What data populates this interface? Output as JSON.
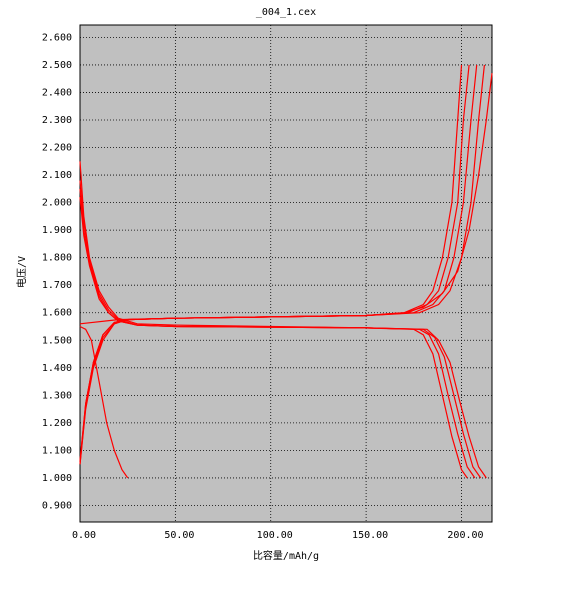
{
  "chart_data": {
    "type": "line",
    "title": "_004_1.cex",
    "xlabel": "比容量/mAh/g",
    "ylabel": "电压/V",
    "xlim": [
      0,
      216
    ],
    "ylim": [
      0.84,
      2.645
    ],
    "grid": true,
    "xticks": [
      {
        "value": 0,
        "label": "0.00"
      },
      {
        "value": 50,
        "label": "50.00"
      },
      {
        "value": 100,
        "label": "100.00"
      },
      {
        "value": 150,
        "label": "150.00"
      },
      {
        "value": 200,
        "label": "200.00"
      }
    ],
    "yticks": [
      {
        "value": 0.9,
        "label": "0.900"
      },
      {
        "value": 1.0,
        "label": "1.000"
      },
      {
        "value": 1.1,
        "label": "1.100"
      },
      {
        "value": 1.2,
        "label": "1.200"
      },
      {
        "value": 1.3,
        "label": "1.300"
      },
      {
        "value": 1.4,
        "label": "1.400"
      },
      {
        "value": 1.5,
        "label": "1.500"
      },
      {
        "value": 1.6,
        "label": "1.600"
      },
      {
        "value": 1.7,
        "label": "1.700"
      },
      {
        "value": 1.8,
        "label": "1.800"
      },
      {
        "value": 1.9,
        "label": "1.900"
      },
      {
        "value": 2.0,
        "label": "2.000"
      },
      {
        "value": 2.1,
        "label": "2.100"
      },
      {
        "value": 2.2,
        "label": "2.200"
      },
      {
        "value": 2.3,
        "label": "2.300"
      },
      {
        "value": 2.4,
        "label": "2.400"
      },
      {
        "value": 2.5,
        "label": "2.500"
      },
      {
        "value": 2.6,
        "label": "2.600"
      }
    ],
    "series": [
      {
        "color": "#ff0000",
        "x": [
          0,
          3,
          6,
          10,
          14,
          18,
          22,
          25
        ],
        "values": [
          1.55,
          1.54,
          1.5,
          1.35,
          1.2,
          1.1,
          1.03,
          1.0
        ]
      },
      {
        "color": "#ff0000",
        "x": [
          0,
          2,
          5,
          10,
          15,
          20,
          30,
          50,
          100,
          150,
          175,
          180,
          185,
          190,
          195,
          200,
          203
        ],
        "values": [
          2.15,
          1.95,
          1.8,
          1.68,
          1.62,
          1.58,
          1.56,
          1.555,
          1.55,
          1.545,
          1.54,
          1.52,
          1.45,
          1.3,
          1.15,
          1.03,
          1.0
        ]
      },
      {
        "color": "#ff0000",
        "x": [
          0,
          2,
          5,
          10,
          15,
          20,
          30,
          50,
          100,
          150,
          178,
          183,
          188,
          193,
          198,
          203,
          207
        ],
        "values": [
          2.08,
          1.93,
          1.79,
          1.67,
          1.61,
          1.575,
          1.555,
          1.55,
          1.548,
          1.545,
          1.54,
          1.52,
          1.45,
          1.3,
          1.16,
          1.04,
          1.0
        ]
      },
      {
        "color": "#ff0000",
        "x": [
          0,
          2,
          5,
          10,
          15,
          20,
          30,
          50,
          100,
          150,
          180,
          186,
          191,
          196,
          201,
          206,
          210
        ],
        "values": [
          2.05,
          1.9,
          1.78,
          1.66,
          1.6,
          1.57,
          1.555,
          1.55,
          1.548,
          1.545,
          1.54,
          1.51,
          1.44,
          1.3,
          1.16,
          1.04,
          1.0
        ]
      },
      {
        "color": "#ff0000",
        "x": [
          0,
          2,
          5,
          10,
          15,
          20,
          30,
          50,
          100,
          150,
          182,
          188,
          194,
          199,
          204,
          209,
          213
        ],
        "values": [
          2.02,
          1.88,
          1.77,
          1.65,
          1.6,
          1.57,
          1.555,
          1.55,
          1.548,
          1.545,
          1.54,
          1.5,
          1.42,
          1.28,
          1.15,
          1.04,
          1.0
        ]
      },
      {
        "color": "#ff0000",
        "x": [
          0,
          3,
          7,
          12,
          18,
          25,
          50,
          100,
          150,
          170,
          180,
          185,
          190,
          195,
          198,
          200
        ],
        "values": [
          1.05,
          1.25,
          1.4,
          1.5,
          1.56,
          1.575,
          1.58,
          1.585,
          1.59,
          1.6,
          1.63,
          1.68,
          1.8,
          2.0,
          2.3,
          2.5
        ]
      },
      {
        "color": "#ff0000",
        "x": [
          0,
          3,
          7,
          12,
          18,
          25,
          50,
          100,
          150,
          172,
          182,
          188,
          193,
          198,
          201,
          204
        ],
        "values": [
          1.05,
          1.26,
          1.41,
          1.51,
          1.56,
          1.575,
          1.58,
          1.585,
          1.59,
          1.6,
          1.63,
          1.68,
          1.8,
          2.0,
          2.3,
          2.5
        ]
      },
      {
        "color": "#ff0000",
        "x": [
          0,
          3,
          7,
          12,
          18,
          25,
          50,
          100,
          150,
          175,
          185,
          191,
          196,
          201,
          205,
          208
        ],
        "values": [
          1.06,
          1.27,
          1.42,
          1.52,
          1.565,
          1.575,
          1.58,
          1.585,
          1.59,
          1.6,
          1.63,
          1.68,
          1.8,
          2.0,
          2.3,
          2.5
        ]
      },
      {
        "color": "#ff0000",
        "x": [
          0,
          3,
          7,
          12,
          18,
          25,
          50,
          100,
          150,
          178,
          188,
          194,
          200,
          205,
          209,
          212
        ],
        "values": [
          1.06,
          1.27,
          1.42,
          1.52,
          1.565,
          1.575,
          1.58,
          1.585,
          1.59,
          1.6,
          1.63,
          1.68,
          1.8,
          2.0,
          2.3,
          2.5
        ]
      },
      {
        "color": "#ff0000",
        "x": [
          0,
          20,
          50,
          100,
          150,
          170,
          180,
          190,
          198,
          204,
          209,
          213,
          216
        ],
        "values": [
          1.56,
          1.575,
          1.58,
          1.585,
          1.59,
          1.6,
          1.62,
          1.67,
          1.75,
          1.9,
          2.1,
          2.3,
          2.47
        ]
      }
    ]
  }
}
